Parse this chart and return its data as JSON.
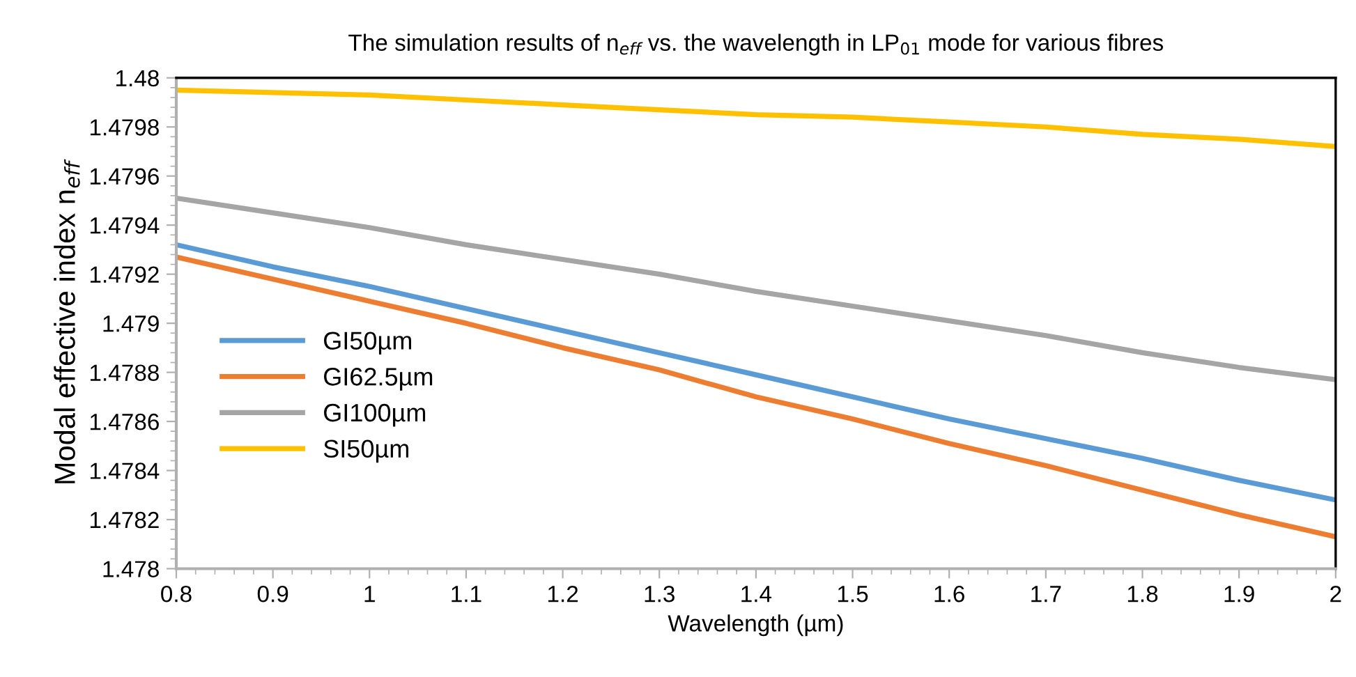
{
  "chart_data": {
    "type": "line",
    "title": "The simulation results of n$_{eff}$ vs. the wavelength in LP$_{01}$ mode for various fibres",
    "xlabel": "Wavelength (µm)",
    "ylabel": "Modal effective index n$_{eff}$",
    "x": [
      0.8,
      0.9,
      1.0,
      1.1,
      1.2,
      1.3,
      1.4,
      1.5,
      1.6,
      1.7,
      1.8,
      1.9,
      2.0
    ],
    "series": [
      {
        "name": "GI50µm",
        "color": "#5b9bd5",
        "values": [
          1.47932,
          1.47923,
          1.47915,
          1.47906,
          1.47897,
          1.47888,
          1.47879,
          1.4787,
          1.47861,
          1.47853,
          1.47845,
          1.47836,
          1.47828
        ]
      },
      {
        "name": "GI62.5µm",
        "color": "#ed7d31",
        "values": [
          1.47927,
          1.47918,
          1.47909,
          1.479,
          1.4789,
          1.47881,
          1.4787,
          1.47861,
          1.47851,
          1.47842,
          1.47832,
          1.47822,
          1.47813
        ]
      },
      {
        "name": "GI100µm",
        "color": "#a5a5a5",
        "values": [
          1.47951,
          1.47945,
          1.47939,
          1.47932,
          1.47926,
          1.4792,
          1.47913,
          1.47907,
          1.47901,
          1.47895,
          1.47888,
          1.47882,
          1.47877
        ]
      },
      {
        "name": "SI50µm",
        "color": "#ffc000",
        "values": [
          1.47995,
          1.47994,
          1.47993,
          1.47991,
          1.47989,
          1.47987,
          1.47985,
          1.47984,
          1.47982,
          1.4798,
          1.47977,
          1.47975,
          1.47972
        ]
      }
    ],
    "xlim": [
      0.8,
      2
    ],
    "ylim": [
      1.478,
      1.48
    ],
    "xticks": [
      0.8,
      0.9,
      1,
      1.1,
      1.2,
      1.3,
      1.4,
      1.5,
      1.6,
      1.7,
      1.8,
      1.9,
      2
    ],
    "yticks": [
      1.478,
      1.4782,
      1.4784,
      1.4786,
      1.4788,
      1.479,
      1.4792,
      1.4794,
      1.4796,
      1.4798,
      1.48
    ],
    "grid": false,
    "legend": "left",
    "marker": "none",
    "line_style": "solid"
  }
}
